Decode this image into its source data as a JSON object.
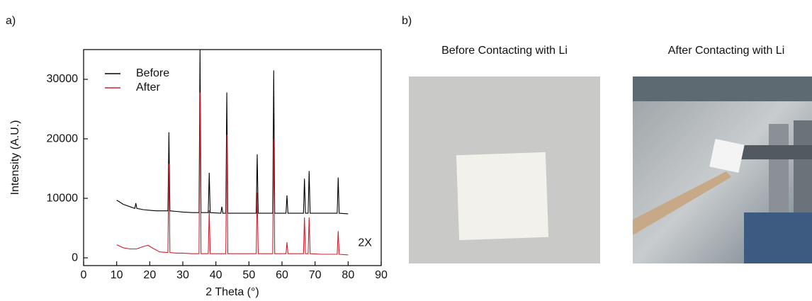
{
  "panel_labels": [
    "a)",
    "b)"
  ],
  "photos": [
    {
      "caption": "Before Contacting with Li"
    },
    {
      "caption": "After Contacting with Li"
    }
  ],
  "chart_data": {
    "type": "line",
    "xlabel": "2 Theta (°)",
    "ylabel": "Intensity (A.U.)",
    "xlim": [
      0,
      90
    ],
    "xticks": [
      0,
      10,
      20,
      30,
      40,
      50,
      60,
      70,
      80,
      90
    ],
    "ylim": [
      -1300,
      35000
    ],
    "yticks": [
      0,
      10000,
      20000,
      30000
    ],
    "legend": "upper left",
    "annotation": "2X",
    "series": [
      {
        "name": "Before",
        "color": "#000000",
        "x": [
          10,
          12,
          14,
          15.5,
          15.8,
          16.1,
          18,
          20,
          22,
          25.5,
          25.8,
          26.1,
          28,
          30,
          33,
          34.9,
          35.2,
          35.5,
          37.7,
          38,
          38.3,
          41.5,
          41.8,
          42.1,
          43,
          43.3,
          43.6,
          46,
          50,
          52.2,
          52.5,
          52.8,
          55,
          57.2,
          57.5,
          57.8,
          61.2,
          61.5,
          61.8,
          64,
          66.5,
          66.8,
          67.1,
          67.9,
          68.2,
          68.5,
          72,
          76.7,
          77,
          77.3,
          80
        ],
        "values": [
          9700,
          9000,
          8600,
          8300,
          9200,
          8300,
          8100,
          8000,
          7900,
          7900,
          21100,
          7900,
          7800,
          7700,
          7600,
          7600,
          35000,
          7600,
          7600,
          14300,
          7600,
          7500,
          8600,
          7500,
          7500,
          27800,
          7500,
          7500,
          7500,
          7500,
          17400,
          7500,
          7500,
          7500,
          31500,
          7500,
          7500,
          10500,
          7500,
          7500,
          7500,
          13300,
          7500,
          7500,
          14600,
          7500,
          7500,
          7500,
          13500,
          7500,
          7400
        ]
      },
      {
        "name": "After",
        "color": "#d0202e",
        "x": [
          10,
          12,
          14,
          16,
          18,
          19.5,
          21,
          23,
          25.5,
          25.8,
          26.1,
          28,
          30,
          33,
          34.9,
          35.2,
          35.5,
          37.7,
          38,
          38.3,
          43,
          43.3,
          43.6,
          46,
          50,
          52.2,
          52.5,
          52.8,
          55,
          57.2,
          57.5,
          57.8,
          61.2,
          61.5,
          61.8,
          64,
          66.5,
          66.8,
          67.1,
          67.9,
          68.2,
          68.5,
          72,
          76.7,
          77,
          77.3,
          80
        ],
        "values": [
          2200,
          1700,
          1500,
          1500,
          1900,
          2100,
          1600,
          1000,
          900,
          15800,
          900,
          800,
          800,
          700,
          700,
          27800,
          700,
          700,
          8000,
          700,
          700,
          20700,
          700,
          700,
          700,
          700,
          11000,
          700,
          700,
          700,
          20000,
          700,
          700,
          2600,
          700,
          700,
          700,
          6800,
          700,
          700,
          6800,
          700,
          600,
          600,
          4500,
          600,
          500
        ]
      }
    ]
  }
}
